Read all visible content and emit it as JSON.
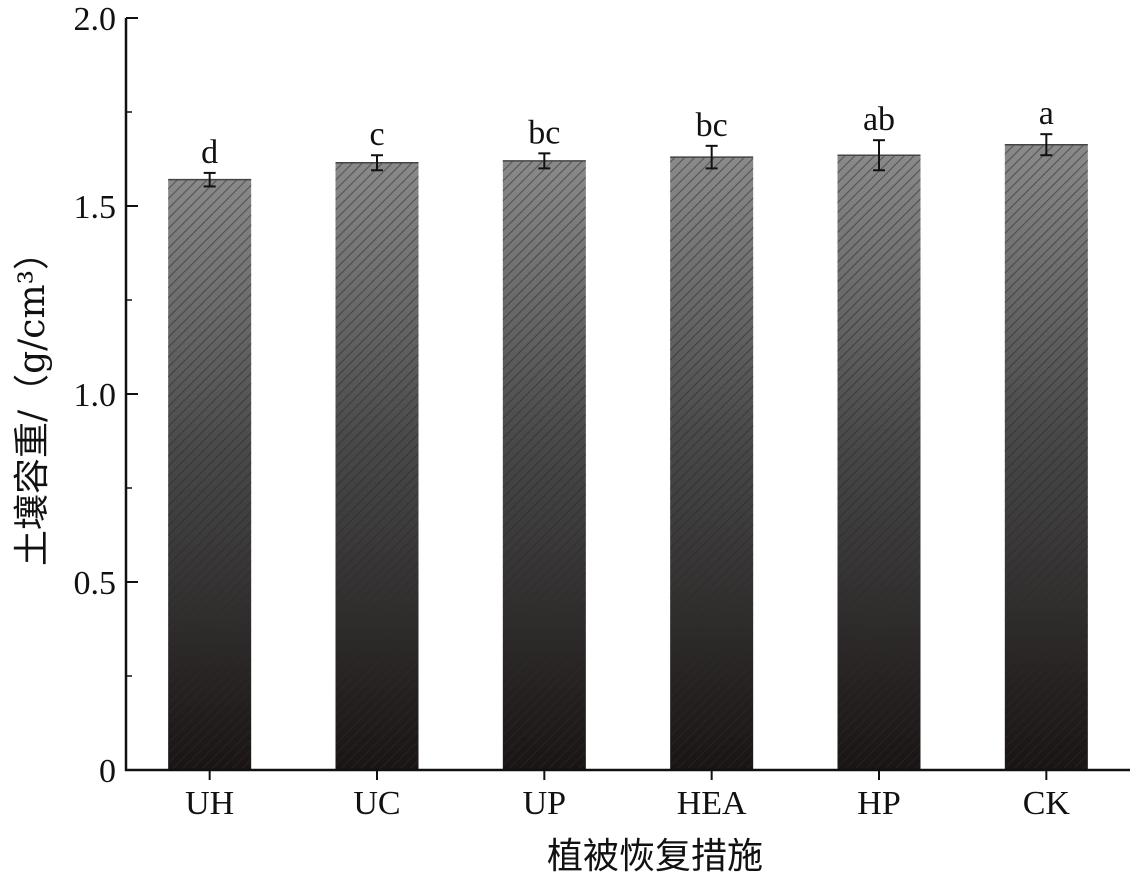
{
  "chart_data": {
    "type": "bar",
    "categories": [
      "UH",
      "UC",
      "UP",
      "HEA",
      "HP",
      "CK"
    ],
    "values": [
      1.57,
      1.615,
      1.62,
      1.63,
      1.635,
      1.663
    ],
    "errors": [
      0.018,
      0.02,
      0.02,
      0.03,
      0.04,
      0.028
    ],
    "significance": [
      "d",
      "c",
      "bc",
      "bc",
      "ab",
      "a"
    ],
    "xlabel": "植被恢复措施",
    "ylabel": "土壤容重/（g/cm³）",
    "ylim": [
      0,
      2.0
    ],
    "yticks": [
      "0",
      "0.5",
      "1.0",
      "1.5",
      "2.0"
    ],
    "grid": false,
    "colors": {
      "bar_top": "#8a8a8a",
      "bar_bottom": "#1a1414",
      "hatch": "#2a2a2a",
      "axis": "#111111"
    }
  }
}
